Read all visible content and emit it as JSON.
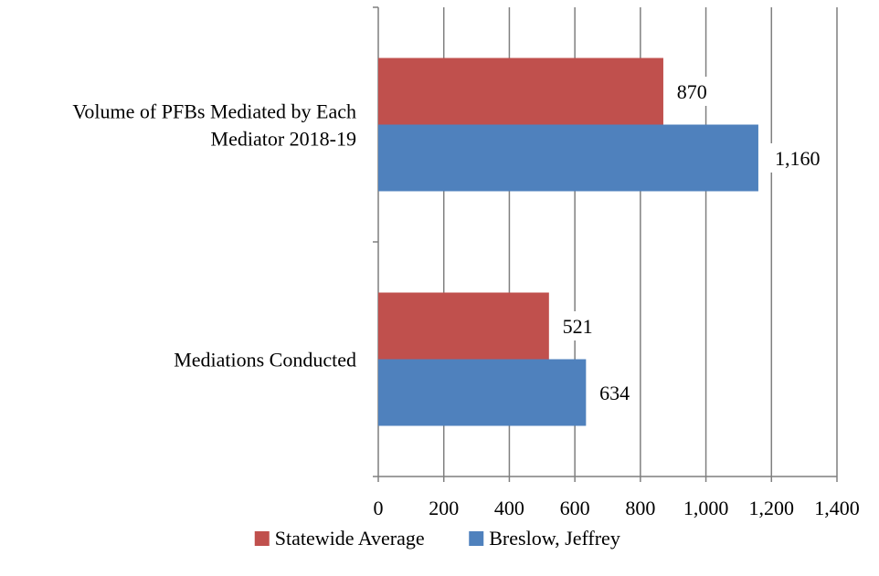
{
  "chart_data": {
    "type": "bar",
    "orientation": "horizontal",
    "title": "",
    "xlabel": "",
    "ylabel": "",
    "categories": [
      [
        "Volume of PFBs Mediated by Each",
        "Mediator 2018-19"
      ],
      [
        "Mediations Conducted"
      ]
    ],
    "series": [
      {
        "name": "Statewide Average",
        "color": "#C0504D",
        "values": [
          870,
          521
        ],
        "labels": [
          "870",
          "521"
        ]
      },
      {
        "name": "Breslow, Jeffrey",
        "color": "#4F81BD",
        "values": [
          1160,
          634
        ],
        "labels": [
          "1,160",
          "634"
        ]
      }
    ],
    "xlim": [
      0,
      1400
    ],
    "xticks": [
      0,
      200,
      400,
      600,
      800,
      1000,
      1200,
      1400
    ],
    "xtick_labels": [
      "0",
      "200",
      "400",
      "600",
      "800",
      "1,000",
      "1,200",
      "1,400"
    ],
    "grid": "vertical",
    "legend_position": "bottom"
  }
}
